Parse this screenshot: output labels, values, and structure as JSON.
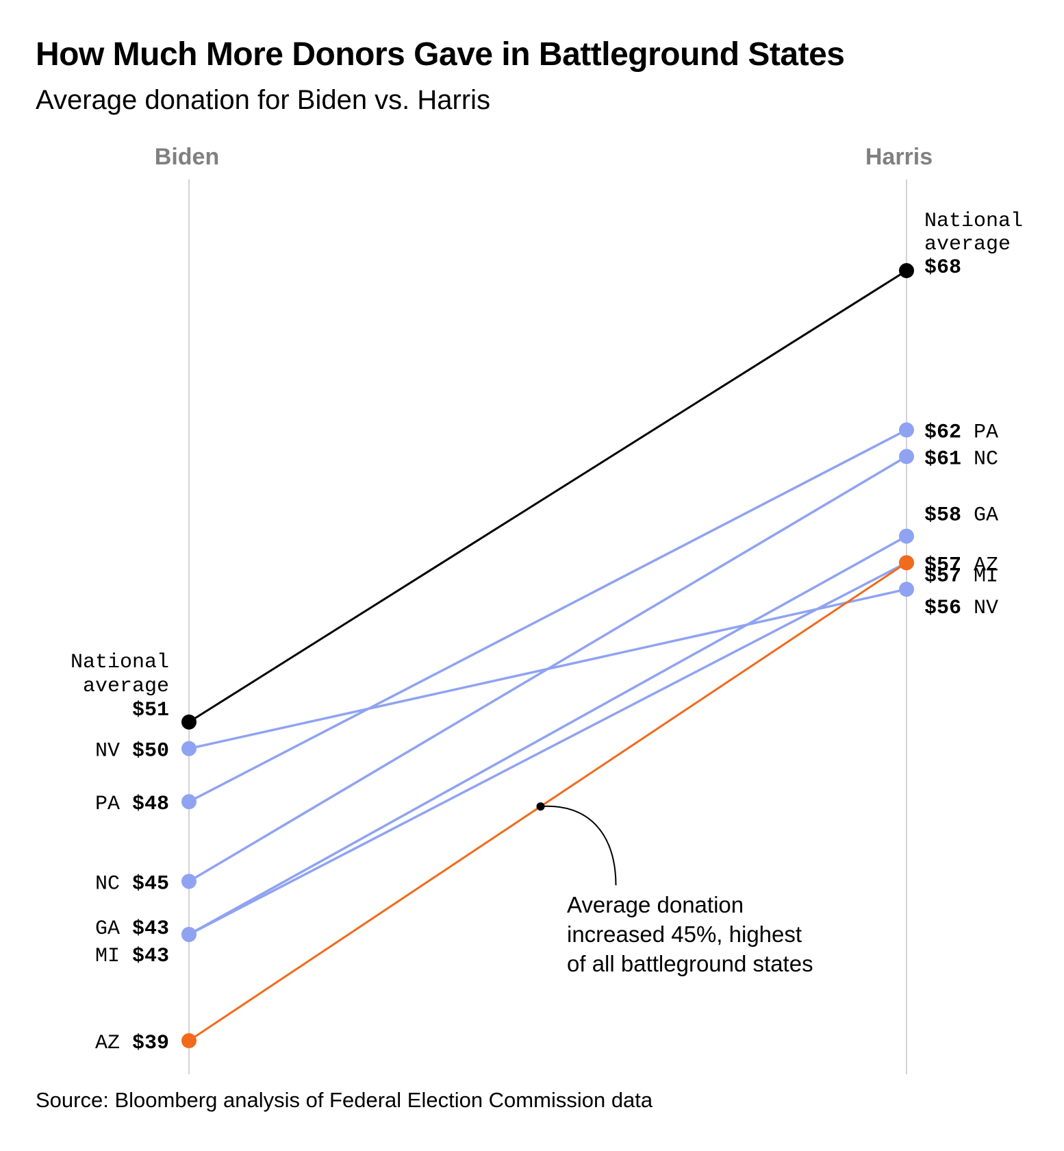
{
  "title": "How Much More Donors Gave in Battleground States",
  "subtitle": "Average donation for Biden vs. Harris",
  "source": "Source: Bloomberg analysis of Federal Election Commission data",
  "colors": {
    "national": "#000000",
    "state": "#8FA3F2",
    "highlight": "#F26A1B",
    "axis": "#D3D3D3",
    "axis_label": "#808080"
  },
  "chart_data": {
    "type": "line",
    "x": [
      "Biden",
      "Harris"
    ],
    "ylim": [
      39,
      68
    ],
    "series": [
      {
        "name": "National average",
        "left_label": [
          "National",
          "average"
        ],
        "right_label": [
          "National",
          "average"
        ],
        "values": [
          51,
          68
        ],
        "role": "national"
      },
      {
        "name": "NV",
        "values": [
          50,
          56
        ],
        "role": "state"
      },
      {
        "name": "PA",
        "values": [
          48,
          62
        ],
        "role": "state"
      },
      {
        "name": "NC",
        "values": [
          45,
          61
        ],
        "role": "state"
      },
      {
        "name": "GA",
        "values": [
          43,
          58
        ],
        "role": "state"
      },
      {
        "name": "MI",
        "values": [
          43,
          57
        ],
        "role": "state"
      },
      {
        "name": "AZ",
        "values": [
          39,
          57
        ],
        "role": "highlight"
      }
    ],
    "annotation": {
      "lines": [
        "Average donation",
        "increased 45%, highest",
        "of all battleground states"
      ],
      "series": "AZ"
    },
    "grid": false,
    "legend": "none"
  }
}
